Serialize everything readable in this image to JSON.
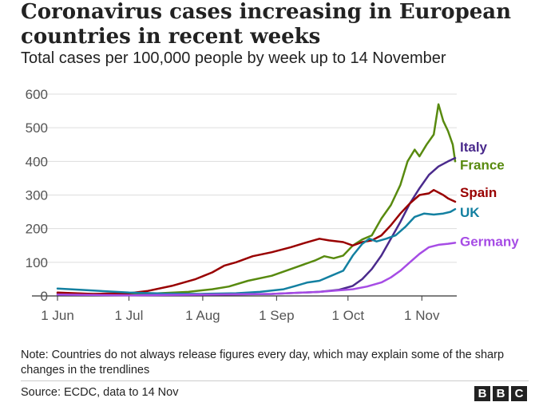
{
  "header": {
    "title": "Coronavirus cases increasing in European countries in recent weeks",
    "subtitle": "Total cases per 100,000 people by week up to 14 November"
  },
  "footer": {
    "note": "Note: Countries do not always release figures every day, which may explain some of the sharp changes in the trendlines",
    "source": "Source: ECDC, data to 14 Nov",
    "logo_letters": [
      "B",
      "B",
      "C"
    ]
  },
  "chart_data": {
    "type": "line",
    "title": "Coronavirus cases increasing in European countries in recent weeks",
    "subtitle": "Total cases per 100,000 people by week up to 14 November",
    "xlabel": "",
    "ylabel": "",
    "x_unit": "days since 1 Jun",
    "xlim": [
      0,
      167
    ],
    "ylim": [
      0,
      600
    ],
    "y_ticks": [
      0,
      100,
      200,
      300,
      400,
      500,
      600
    ],
    "y_tick_labels": [
      "0",
      "100",
      "200",
      "300",
      "400",
      "500",
      "600"
    ],
    "x_ticks": [
      {
        "day": 0,
        "label": "1 Jun"
      },
      {
        "day": 30,
        "label": "1 Jul"
      },
      {
        "day": 61,
        "label": "1 Aug"
      },
      {
        "day": 92,
        "label": "1 Sep"
      },
      {
        "day": 122,
        "label": "1 Oct"
      },
      {
        "day": 153,
        "label": "1 Nov"
      }
    ],
    "grid": true,
    "legend": "direct labels at right end of lines",
    "series": [
      {
        "name": "France",
        "color": "#588a0f",
        "points": [
          [
            0,
            8
          ],
          [
            15,
            6
          ],
          [
            30,
            5
          ],
          [
            40,
            7
          ],
          [
            55,
            12
          ],
          [
            65,
            20
          ],
          [
            72,
            28
          ],
          [
            80,
            45
          ],
          [
            90,
            60
          ],
          [
            100,
            85
          ],
          [
            108,
            105
          ],
          [
            112,
            118
          ],
          [
            116,
            112
          ],
          [
            120,
            120
          ],
          [
            124,
            150
          ],
          [
            128,
            168
          ],
          [
            132,
            180
          ],
          [
            136,
            230
          ],
          [
            140,
            270
          ],
          [
            144,
            330
          ],
          [
            147,
            400
          ],
          [
            150,
            435
          ],
          [
            152,
            415
          ],
          [
            155,
            450
          ],
          [
            158,
            480
          ],
          [
            160,
            570
          ],
          [
            162,
            520
          ],
          [
            164,
            490
          ],
          [
            166,
            450
          ],
          [
            167,
            400
          ]
        ]
      },
      {
        "name": "Italy",
        "color": "#4a2a8c",
        "points": [
          [
            0,
            4
          ],
          [
            30,
            2
          ],
          [
            60,
            3
          ],
          [
            90,
            6
          ],
          [
            110,
            12
          ],
          [
            118,
            18
          ],
          [
            124,
            30
          ],
          [
            128,
            50
          ],
          [
            132,
            80
          ],
          [
            136,
            120
          ],
          [
            140,
            170
          ],
          [
            144,
            220
          ],
          [
            148,
            275
          ],
          [
            152,
            320
          ],
          [
            156,
            360
          ],
          [
            160,
            385
          ],
          [
            164,
            400
          ],
          [
            167,
            410
          ]
        ]
      },
      {
        "name": "Spain",
        "color": "#990000",
        "points": [
          [
            0,
            10
          ],
          [
            15,
            6
          ],
          [
            30,
            8
          ],
          [
            38,
            15
          ],
          [
            48,
            30
          ],
          [
            58,
            50
          ],
          [
            65,
            70
          ],
          [
            70,
            90
          ],
          [
            75,
            100
          ],
          [
            82,
            118
          ],
          [
            90,
            130
          ],
          [
            98,
            145
          ],
          [
            104,
            158
          ],
          [
            110,
            170
          ],
          [
            114,
            165
          ],
          [
            120,
            160
          ],
          [
            124,
            150
          ],
          [
            128,
            160
          ],
          [
            132,
            165
          ],
          [
            136,
            180
          ],
          [
            140,
            210
          ],
          [
            144,
            245
          ],
          [
            148,
            275
          ],
          [
            152,
            300
          ],
          [
            156,
            305
          ],
          [
            158,
            315
          ],
          [
            162,
            300
          ],
          [
            164,
            290
          ],
          [
            167,
            280
          ]
        ]
      },
      {
        "name": "UK",
        "color": "#1380a1",
        "points": [
          [
            0,
            22
          ],
          [
            10,
            18
          ],
          [
            20,
            14
          ],
          [
            30,
            10
          ],
          [
            45,
            7
          ],
          [
            60,
            6
          ],
          [
            75,
            8
          ],
          [
            85,
            12
          ],
          [
            95,
            20
          ],
          [
            100,
            30
          ],
          [
            105,
            40
          ],
          [
            110,
            45
          ],
          [
            115,
            60
          ],
          [
            120,
            75
          ],
          [
            124,
            120
          ],
          [
            128,
            155
          ],
          [
            131,
            170
          ],
          [
            134,
            162
          ],
          [
            138,
            170
          ],
          [
            142,
            180
          ],
          [
            146,
            205
          ],
          [
            150,
            235
          ],
          [
            154,
            245
          ],
          [
            158,
            242
          ],
          [
            162,
            245
          ],
          [
            165,
            250
          ],
          [
            167,
            258
          ]
        ]
      },
      {
        "name": "Germany",
        "color": "#a64ce5",
        "points": [
          [
            0,
            4
          ],
          [
            30,
            2
          ],
          [
            60,
            4
          ],
          [
            90,
            6
          ],
          [
            110,
            12
          ],
          [
            124,
            20
          ],
          [
            130,
            28
          ],
          [
            136,
            40
          ],
          [
            140,
            55
          ],
          [
            144,
            75
          ],
          [
            148,
            100
          ],
          [
            152,
            125
          ],
          [
            156,
            145
          ],
          [
            160,
            152
          ],
          [
            164,
            155
          ],
          [
            167,
            158
          ]
        ]
      }
    ]
  }
}
